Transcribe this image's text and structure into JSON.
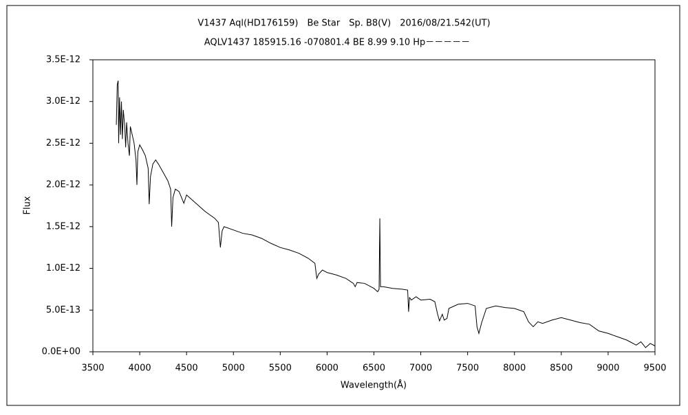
{
  "chart_data": {
    "type": "line",
    "title": "V1437 Aql(HD176159)　Be Star　Sp. B8(V)　2016/08/21.542(UT)",
    "subtitle": "AQLV1437 185915.16 -070801.4 BE 8.99 9.10 Hp－－－－－",
    "xlabel": "Wavelength(Å)",
    "ylabel": "Flux",
    "xlim": [
      3500,
      9500
    ],
    "xticks": [
      3500,
      4000,
      4500,
      5000,
      5500,
      6000,
      6500,
      7000,
      7500,
      8000,
      8500,
      9000,
      9500
    ],
    "ylim": [
      0,
      3.5e-12
    ],
    "yticks": [
      {
        "value": 0,
        "label": "0.0E+00"
      },
      {
        "value": 5e-13,
        "label": "5.0E-13"
      },
      {
        "value": 1e-12,
        "label": "1.0E-12"
      },
      {
        "value": 1.5e-12,
        "label": "1.5E-12"
      },
      {
        "value": 2e-12,
        "label": "2.0E-12"
      },
      {
        "value": 2.5e-12,
        "label": "2.5E-12"
      },
      {
        "value": 3e-12,
        "label": "3.0E-12"
      },
      {
        "value": 3.5e-12,
        "label": "3.5E-12"
      }
    ],
    "color": "#000000",
    "x": [
      3750,
      3760,
      3770,
      3775,
      3785,
      3795,
      3805,
      3815,
      3825,
      3840,
      3850,
      3860,
      3875,
      3890,
      3900,
      3920,
      3940,
      3960,
      3970,
      3980,
      4000,
      4030,
      4060,
      4090,
      4101,
      4115,
      4140,
      4170,
      4200,
      4250,
      4300,
      4330,
      4341,
      4355,
      4380,
      4420,
      4471,
      4500,
      4600,
      4700,
      4800,
      4840,
      4861,
      4880,
      4900,
      5000,
      5100,
      5200,
      5300,
      5400,
      5500,
      5600,
      5700,
      5800,
      5870,
      5890,
      5910,
      5950,
      6000,
      6100,
      6200,
      6280,
      6300,
      6320,
      6400,
      6500,
      6540,
      6555,
      6563,
      6570,
      6600,
      6700,
      6800,
      6860,
      6870,
      6880,
      6900,
      6950,
      7000,
      7100,
      7150,
      7180,
      7200,
      7230,
      7250,
      7280,
      7300,
      7400,
      7500,
      7580,
      7600,
      7620,
      7650,
      7700,
      7800,
      7900,
      8000,
      8100,
      8150,
      8200,
      8250,
      8300,
      8400,
      8500,
      8600,
      8700,
      8800,
      8900,
      9000,
      9100,
      9200,
      9300,
      9350,
      9400,
      9450,
      9500
    ],
    "values": [
      2.72e-12,
      3.2e-12,
      3.25e-12,
      2.5e-12,
      3.05e-12,
      2.6e-12,
      3e-12,
      2.55e-12,
      2.9e-12,
      2.7e-12,
      2.45e-12,
      2.75e-12,
      2.5e-12,
      2.35e-12,
      2.7e-12,
      2.6e-12,
      2.5e-12,
      2.3e-12,
      2e-12,
      2.4e-12,
      2.48e-12,
      2.42e-12,
      2.35e-12,
      2.2e-12,
      1.77e-12,
      2.1e-12,
      2.25e-12,
      2.3e-12,
      2.25e-12,
      2.15e-12,
      2.05e-12,
      1.95e-12,
      1.5e-12,
      1.85e-12,
      1.95e-12,
      1.92e-12,
      1.78e-12,
      1.88e-12,
      1.78e-12,
      1.68e-12,
      1.6e-12,
      1.55e-12,
      1.25e-12,
      1.45e-12,
      1.5e-12,
      1.46e-12,
      1.42e-12,
      1.4e-12,
      1.36e-12,
      1.3e-12,
      1.25e-12,
      1.22e-12,
      1.18e-12,
      1.12e-12,
      1.06e-12,
      8.8e-13,
      9.3e-13,
      9.8e-13,
      9.5e-13,
      9.2e-13,
      8.8e-13,
      8.2e-13,
      7.8e-13,
      8.3e-13,
      8.2e-13,
      7.6e-13,
      7.2e-13,
      7.5e-13,
      1.6e-12,
      7.8e-13,
      7.8e-13,
      7.6e-13,
      7.5e-13,
      7.4e-13,
      4.8e-13,
      6.5e-13,
      6.2e-13,
      6.6e-13,
      6.2e-13,
      6.3e-13,
      6e-13,
      4.5e-13,
      3.7e-13,
      4.5e-13,
      3.8e-13,
      4e-13,
      5.2e-13,
      5.7e-13,
      5.8e-13,
      5.5e-13,
      3e-13,
      2.2e-13,
      3.5e-13,
      5.2e-13,
      5.5e-13,
      5.3e-13,
      5.2e-13,
      4.8e-13,
      3.6e-13,
      3e-13,
      3.6e-13,
      3.4e-13,
      3.8e-13,
      4.1e-13,
      3.8e-13,
      3.5e-13,
      3.3e-13,
      2.5e-13,
      2.2e-13,
      1.8e-13,
      1.4e-13,
      8e-14,
      1.2e-13,
      5e-14,
      1e-13,
      7e-14
    ]
  }
}
